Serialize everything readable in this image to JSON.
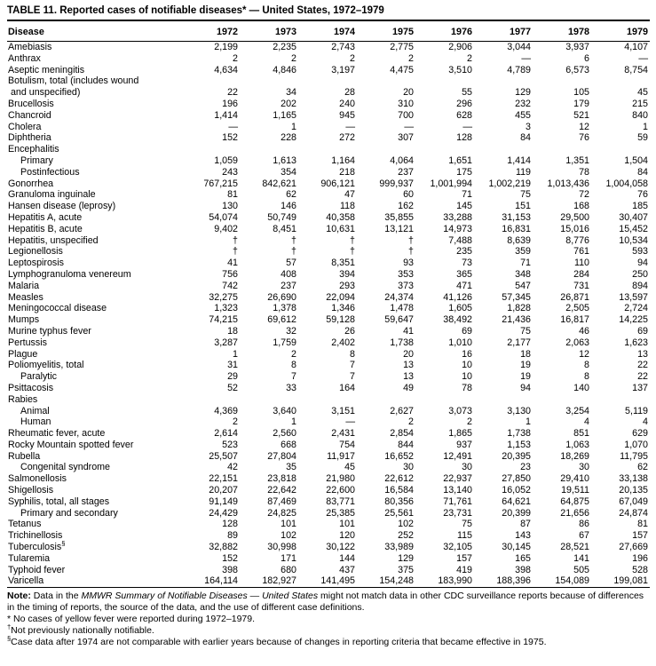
{
  "title": "TABLE 11. Reported cases of notifiable diseases* — United States, 1972–1979",
  "table": {
    "disease_header": "Disease",
    "year_headers": [
      "1972",
      "1973",
      "1974",
      "1975",
      "1976",
      "1977",
      "1978",
      "1979"
    ],
    "rows": [
      {
        "label": "Amebiasis",
        "indent": 0,
        "values": [
          "2,199",
          "2,235",
          "2,743",
          "2,775",
          "2,906",
          "3,044",
          "3,937",
          "4,107"
        ]
      },
      {
        "label": "Anthrax",
        "indent": 0,
        "values": [
          "2",
          "2",
          "2",
          "2",
          "2",
          "—",
          "6",
          "—"
        ]
      },
      {
        "label": "Aseptic meningitis",
        "indent": 0,
        "values": [
          "4,634",
          "4,846",
          "3,197",
          "4,475",
          "3,510",
          "4,789",
          "6,573",
          "8,754"
        ]
      },
      {
        "label": "Botulism, total (includes wound\n and unspecified)",
        "indent": 0,
        "values": [
          "22",
          "34",
          "28",
          "20",
          "55",
          "129",
          "105",
          "45"
        ]
      },
      {
        "label": "Brucellosis",
        "indent": 0,
        "values": [
          "196",
          "202",
          "240",
          "310",
          "296",
          "232",
          "179",
          "215"
        ]
      },
      {
        "label": "Chancroid",
        "indent": 0,
        "values": [
          "1,414",
          "1,165",
          "945",
          "700",
          "628",
          "455",
          "521",
          "840"
        ]
      },
      {
        "label": "Cholera",
        "indent": 0,
        "values": [
          "—",
          "1",
          "—",
          "—",
          "—",
          "3",
          "12",
          "1"
        ]
      },
      {
        "label": "Diphtheria",
        "indent": 0,
        "values": [
          "152",
          "228",
          "272",
          "307",
          "128",
          "84",
          "76",
          "59"
        ]
      },
      {
        "label": "Encephalitis",
        "indent": 0,
        "values": []
      },
      {
        "label": "Primary",
        "indent": 1,
        "values": [
          "1,059",
          "1,613",
          "1,164",
          "4,064",
          "1,651",
          "1,414",
          "1,351",
          "1,504"
        ]
      },
      {
        "label": "Postinfectious",
        "indent": 1,
        "values": [
          "243",
          "354",
          "218",
          "237",
          "175",
          "119",
          "78",
          "84"
        ]
      },
      {
        "label": "Gonorrhea",
        "indent": 0,
        "values": [
          "767,215",
          "842,621",
          "906,121",
          "999,937",
          "1,001,994",
          "1,002,219",
          "1,013,436",
          "1,004,058"
        ]
      },
      {
        "label": "Granuloma inguinale",
        "indent": 0,
        "values": [
          "81",
          "62",
          "47",
          "60",
          "71",
          "75",
          "72",
          "76"
        ]
      },
      {
        "label": "Hansen disease (leprosy)",
        "indent": 0,
        "values": [
          "130",
          "146",
          "118",
          "162",
          "145",
          "151",
          "168",
          "185"
        ]
      },
      {
        "label": "Hepatitis A, acute",
        "indent": 0,
        "values": [
          "54,074",
          "50,749",
          "40,358",
          "35,855",
          "33,288",
          "31,153",
          "29,500",
          "30,407"
        ]
      },
      {
        "label": "Hepatitis B, acute",
        "indent": 0,
        "values": [
          "9,402",
          "8,451",
          "10,631",
          "13,121",
          "14,973",
          "16,831",
          "15,016",
          "15,452"
        ]
      },
      {
        "label": "Hepatitis, unspecified",
        "indent": 0,
        "values": [
          "†",
          "†",
          "†",
          "†",
          "7,488",
          "8,639",
          "8,776",
          "10,534"
        ]
      },
      {
        "label": "Legionellosis",
        "indent": 0,
        "values": [
          "†",
          "†",
          "†",
          "†",
          "235",
          "359",
          "761",
          "593"
        ]
      },
      {
        "label": "Leptospirosis",
        "indent": 0,
        "values": [
          "41",
          "57",
          "8,351",
          "93",
          "73",
          "71",
          "110",
          "94"
        ]
      },
      {
        "label": "Lymphogranuloma venereum",
        "indent": 0,
        "values": [
          "756",
          "408",
          "394",
          "353",
          "365",
          "348",
          "284",
          "250"
        ]
      },
      {
        "label": "Malaria",
        "indent": 0,
        "values": [
          "742",
          "237",
          "293",
          "373",
          "471",
          "547",
          "731",
          "894"
        ]
      },
      {
        "label": "Measles",
        "indent": 0,
        "values": [
          "32,275",
          "26,690",
          "22,094",
          "24,374",
          "41,126",
          "57,345",
          "26,871",
          "13,597"
        ]
      },
      {
        "label": "Meningococcal disease",
        "indent": 0,
        "values": [
          "1,323",
          "1,378",
          "1,346",
          "1,478",
          "1,605",
          "1,828",
          "2,505",
          "2,724"
        ]
      },
      {
        "label": "Mumps",
        "indent": 0,
        "values": [
          "74,215",
          "69,612",
          "59,128",
          "59,647",
          "38,492",
          "21,436",
          "16,817",
          "14,225"
        ]
      },
      {
        "label": "Murine typhus fever",
        "indent": 0,
        "values": [
          "18",
          "32",
          "26",
          "41",
          "69",
          "75",
          "46",
          "69"
        ]
      },
      {
        "label": "Pertussis",
        "indent": 0,
        "values": [
          "3,287",
          "1,759",
          "2,402",
          "1,738",
          "1,010",
          "2,177",
          "2,063",
          "1,623"
        ]
      },
      {
        "label": "Plague",
        "indent": 0,
        "values": [
          "1",
          "2",
          "8",
          "20",
          "16",
          "18",
          "12",
          "13"
        ]
      },
      {
        "label": "Poliomyelitis, total",
        "indent": 0,
        "values": [
          "31",
          "8",
          "7",
          "13",
          "10",
          "19",
          "8",
          "22"
        ]
      },
      {
        "label": "Paralytic",
        "indent": 1,
        "values": [
          "29",
          "7",
          "7",
          "13",
          "10",
          "19",
          "8",
          "22"
        ]
      },
      {
        "label": "Psittacosis",
        "indent": 0,
        "values": [
          "52",
          "33",
          "164",
          "49",
          "78",
          "94",
          "140",
          "137"
        ]
      },
      {
        "label": "Rabies",
        "indent": 0,
        "values": []
      },
      {
        "label": "Animal",
        "indent": 1,
        "values": [
          "4,369",
          "3,640",
          "3,151",
          "2,627",
          "3,073",
          "3,130",
          "3,254",
          "5,119"
        ]
      },
      {
        "label": "Human",
        "indent": 1,
        "values": [
          "2",
          "1",
          "—",
          "2",
          "2",
          "1",
          "4",
          "4"
        ]
      },
      {
        "label": "Rheumatic fever, acute",
        "indent": 0,
        "values": [
          "2,614",
          "2,560",
          "2,431",
          "2,854",
          "1,865",
          "1,738",
          "851",
          "629"
        ]
      },
      {
        "label": "Rocky Mountain spotted fever",
        "indent": 0,
        "values": [
          "523",
          "668",
          "754",
          "844",
          "937",
          "1,153",
          "1,063",
          "1,070"
        ]
      },
      {
        "label": "Rubella",
        "indent": 0,
        "values": [
          "25,507",
          "27,804",
          "11,917",
          "16,652",
          "12,491",
          "20,395",
          "18,269",
          "11,795"
        ]
      },
      {
        "label": "Congenital syndrome",
        "indent": 1,
        "values": [
          "42",
          "35",
          "45",
          "30",
          "30",
          "23",
          "30",
          "62"
        ]
      },
      {
        "label": "Salmonellosis",
        "indent": 0,
        "values": [
          "22,151",
          "23,818",
          "21,980",
          "22,612",
          "22,937",
          "27,850",
          "29,410",
          "33,138"
        ]
      },
      {
        "label": "Shigellosis",
        "indent": 0,
        "values": [
          "20,207",
          "22,642",
          "22,600",
          "16,584",
          "13,140",
          "16,052",
          "19,511",
          "20,135"
        ]
      },
      {
        "label": "Syphilis, total, all stages",
        "indent": 0,
        "values": [
          "91,149",
          "87,469",
          "83,771",
          "80,356",
          "71,761",
          "64,621",
          "64,875",
          "67,049"
        ]
      },
      {
        "label": "Primary and secondary",
        "indent": 1,
        "values": [
          "24,429",
          "24,825",
          "25,385",
          "25,561",
          "23,731",
          "20,399",
          "21,656",
          "24,874"
        ]
      },
      {
        "label": "Tetanus",
        "indent": 0,
        "values": [
          "128",
          "101",
          "101",
          "102",
          "75",
          "87",
          "86",
          "81"
        ]
      },
      {
        "label": "Trichinellosis",
        "indent": 0,
        "values": [
          "89",
          "102",
          "120",
          "252",
          "115",
          "143",
          "67",
          "157"
        ]
      },
      {
        "label": "Tuberculosis",
        "sup": "§",
        "indent": 0,
        "values": [
          "32,882",
          "30,998",
          "30,122",
          "33,989",
          "32,105",
          "30,145",
          "28,521",
          "27,669"
        ]
      },
      {
        "label": "Tularemia",
        "indent": 0,
        "values": [
          "152",
          "171",
          "144",
          "129",
          "157",
          "165",
          "141",
          "196"
        ]
      },
      {
        "label": "Typhoid fever",
        "indent": 0,
        "values": [
          "398",
          "680",
          "437",
          "375",
          "419",
          "398",
          "505",
          "528"
        ]
      },
      {
        "label": "Varicella",
        "indent": 0,
        "values": [
          "164,114",
          "182,927",
          "141,495",
          "154,248",
          "183,990",
          "188,396",
          "154,089",
          "199,081"
        ]
      }
    ]
  },
  "notes": {
    "note": {
      "label": "Note:",
      "pre": " Data in the ",
      "italic": "MMWR Summary of Notifiable Diseases — United States",
      "post": " might not match data in other CDC surveillance reports because of differences in the timing of reports, the source of the data, and the use of different case definitions."
    },
    "footnotes": [
      {
        "marker": "*",
        "sup": false,
        "text": "No cases of yellow fever were reported during 1972–1979."
      },
      {
        "marker": "†",
        "sup": true,
        "text": "Not previously nationally notifiable."
      },
      {
        "marker": "§",
        "sup": true,
        "text": "Case data after 1974 are not comparable with earlier years because of changes in reporting criteria that became effective in 1975."
      }
    ]
  }
}
